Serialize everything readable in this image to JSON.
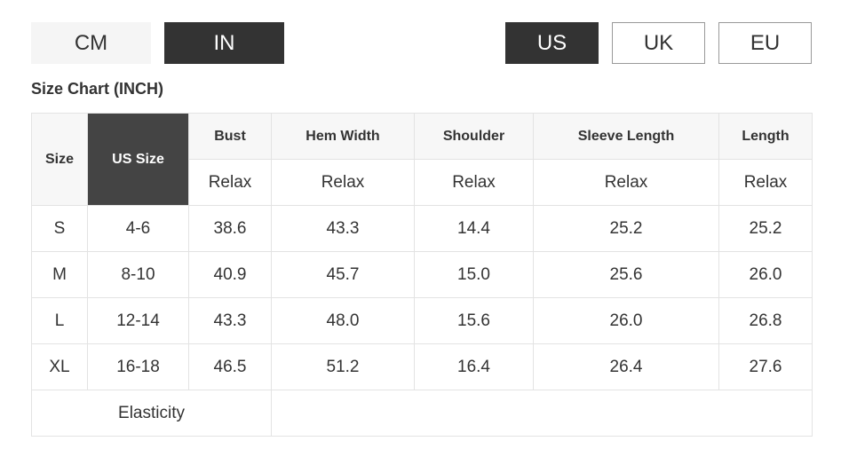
{
  "unit_toggle": [
    {
      "label": "CM",
      "selected": false
    },
    {
      "label": "IN",
      "selected": true
    }
  ],
  "region_toggle": [
    {
      "label": "US",
      "selected": true
    },
    {
      "label": "UK",
      "selected": false
    },
    {
      "label": "EU",
      "selected": false
    }
  ],
  "title": "Size Chart (INCH)",
  "table": {
    "headers": [
      "Size",
      "US Size",
      "Bust",
      "Hem Width",
      "Shoulder",
      "Sleeve Length",
      "Length"
    ],
    "subheaders": [
      "Relax",
      "Relax",
      "Relax",
      "Relax",
      "Relax"
    ],
    "rows": [
      [
        "S",
        "4-6",
        "38.6",
        "43.3",
        "14.4",
        "25.2",
        "25.2"
      ],
      [
        "M",
        "8-10",
        "40.9",
        "45.7",
        "15.0",
        "25.6",
        "26.0"
      ],
      [
        "L",
        "12-14",
        "43.3",
        "48.0",
        "15.6",
        "26.0",
        "26.8"
      ],
      [
        "XL",
        "16-18",
        "46.5",
        "51.2",
        "16.4",
        "26.4",
        "27.6"
      ]
    ],
    "footer_label": "Elasticity"
  },
  "colors": {
    "dark": "#333333",
    "us_header": "#444444",
    "light": "#f5f5f5",
    "border": "#e3e3e3"
  }
}
